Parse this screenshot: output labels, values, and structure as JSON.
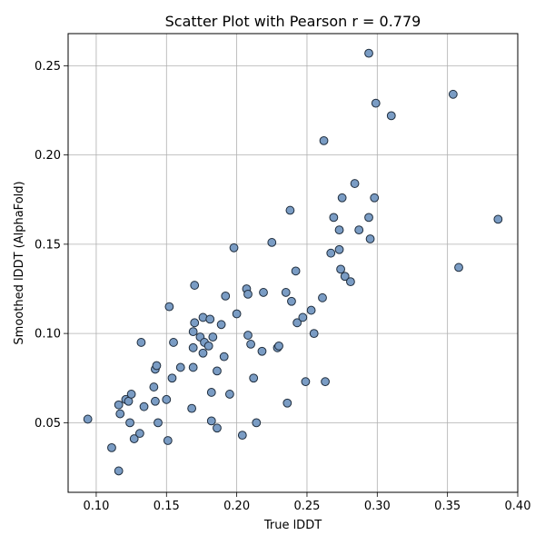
{
  "chart_data": {
    "type": "scatter",
    "title": "Scatter Plot with Pearson r = 0.779",
    "xlabel": "True lDDT",
    "ylabel": "Smoothed lDDT (AlphaFold)",
    "xlim": [
      0.08,
      0.4
    ],
    "ylim": [
      0.011,
      0.268
    ],
    "xticks": [
      0.1,
      0.15,
      0.2,
      0.25,
      0.3,
      0.35,
      0.4
    ],
    "yticks": [
      0.05,
      0.1,
      0.15,
      0.2,
      0.25
    ],
    "xtick_labels": [
      "0.10",
      "0.15",
      "0.20",
      "0.25",
      "0.30",
      "0.35",
      "0.40"
    ],
    "ytick_labels": [
      "0.05",
      "0.10",
      "0.15",
      "0.20",
      "0.25"
    ],
    "grid": true,
    "marker_color": "#7a9cc4",
    "marker_edge": "#1f2d3d",
    "points": [
      [
        0.094,
        0.052
      ],
      [
        0.111,
        0.036
      ],
      [
        0.116,
        0.023
      ],
      [
        0.116,
        0.06
      ],
      [
        0.117,
        0.055
      ],
      [
        0.121,
        0.063
      ],
      [
        0.123,
        0.062
      ],
      [
        0.124,
        0.05
      ],
      [
        0.125,
        0.066
      ],
      [
        0.127,
        0.041
      ],
      [
        0.131,
        0.044
      ],
      [
        0.132,
        0.095
      ],
      [
        0.134,
        0.059
      ],
      [
        0.141,
        0.07
      ],
      [
        0.142,
        0.08
      ],
      [
        0.142,
        0.062
      ],
      [
        0.143,
        0.082
      ],
      [
        0.144,
        0.05
      ],
      [
        0.15,
        0.063
      ],
      [
        0.151,
        0.04
      ],
      [
        0.152,
        0.115
      ],
      [
        0.154,
        0.075
      ],
      [
        0.155,
        0.095
      ],
      [
        0.16,
        0.081
      ],
      [
        0.168,
        0.058
      ],
      [
        0.169,
        0.081
      ],
      [
        0.169,
        0.092
      ],
      [
        0.169,
        0.101
      ],
      [
        0.17,
        0.127
      ],
      [
        0.17,
        0.106
      ],
      [
        0.174,
        0.098
      ],
      [
        0.176,
        0.109
      ],
      [
        0.176,
        0.089
      ],
      [
        0.177,
        0.095
      ],
      [
        0.18,
        0.093
      ],
      [
        0.181,
        0.108
      ],
      [
        0.182,
        0.067
      ],
      [
        0.182,
        0.051
      ],
      [
        0.183,
        0.098
      ],
      [
        0.186,
        0.079
      ],
      [
        0.186,
        0.047
      ],
      [
        0.189,
        0.105
      ],
      [
        0.191,
        0.087
      ],
      [
        0.192,
        0.121
      ],
      [
        0.195,
        0.066
      ],
      [
        0.198,
        0.148
      ],
      [
        0.2,
        0.111
      ],
      [
        0.204,
        0.043
      ],
      [
        0.207,
        0.125
      ],
      [
        0.208,
        0.122
      ],
      [
        0.208,
        0.099
      ],
      [
        0.21,
        0.094
      ],
      [
        0.212,
        0.075
      ],
      [
        0.214,
        0.05
      ],
      [
        0.218,
        0.09
      ],
      [
        0.219,
        0.123
      ],
      [
        0.225,
        0.151
      ],
      [
        0.229,
        0.092
      ],
      [
        0.23,
        0.093
      ],
      [
        0.235,
        0.123
      ],
      [
        0.236,
        0.061
      ],
      [
        0.238,
        0.169
      ],
      [
        0.239,
        0.118
      ],
      [
        0.242,
        0.135
      ],
      [
        0.243,
        0.106
      ],
      [
        0.247,
        0.109
      ],
      [
        0.249,
        0.073
      ],
      [
        0.253,
        0.113
      ],
      [
        0.255,
        0.1
      ],
      [
        0.261,
        0.12
      ],
      [
        0.262,
        0.208
      ],
      [
        0.263,
        0.073
      ],
      [
        0.267,
        0.145
      ],
      [
        0.269,
        0.165
      ],
      [
        0.273,
        0.147
      ],
      [
        0.273,
        0.158
      ],
      [
        0.274,
        0.136
      ],
      [
        0.275,
        0.176
      ],
      [
        0.277,
        0.132
      ],
      [
        0.281,
        0.129
      ],
      [
        0.284,
        0.184
      ],
      [
        0.287,
        0.158
      ],
      [
        0.294,
        0.257
      ],
      [
        0.294,
        0.165
      ],
      [
        0.295,
        0.153
      ],
      [
        0.298,
        0.176
      ],
      [
        0.299,
        0.229
      ],
      [
        0.31,
        0.222
      ],
      [
        0.354,
        0.234
      ],
      [
        0.358,
        0.137
      ],
      [
        0.386,
        0.164
      ]
    ]
  }
}
